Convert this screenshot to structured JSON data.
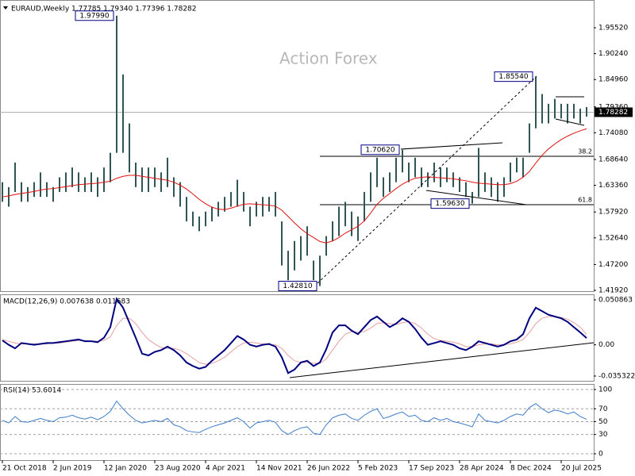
{
  "chart_data": [
    {
      "type": "ohlc",
      "title": "EURAUD,Weekly  1.77785 1.79340 1.77396 1.78282",
      "watermark": "Action Forex",
      "bar_color": "#2f5555",
      "highs": [
        1.64,
        1.63,
        1.68,
        1.64,
        1.63,
        1.64,
        1.66,
        1.64,
        1.63,
        1.65,
        1.66,
        1.67,
        1.66,
        1.65,
        1.66,
        1.65,
        1.67,
        1.7,
        1.9799,
        1.86,
        1.76,
        1.68,
        1.67,
        1.67,
        1.67,
        1.66,
        1.69,
        1.65,
        1.64,
        1.61,
        1.58,
        1.57,
        1.58,
        1.59,
        1.6,
        1.61,
        1.62,
        1.645,
        1.62,
        1.59,
        1.6,
        1.61,
        1.61,
        1.62,
        1.56,
        1.5,
        1.52,
        1.53,
        1.55,
        1.48,
        1.49,
        1.53,
        1.56,
        1.59,
        1.6,
        1.58,
        1.57,
        1.62,
        1.66,
        1.69,
        1.65,
        1.66,
        1.69,
        1.7062,
        1.68,
        1.69,
        1.67,
        1.66,
        1.68,
        1.67,
        1.67,
        1.66,
        1.65,
        1.64,
        1.62,
        1.71,
        1.66,
        1.65,
        1.64,
        1.65,
        1.68,
        1.69,
        1.69,
        1.76,
        1.8554,
        1.82,
        1.8,
        1.81,
        1.8,
        1.8,
        1.8,
        1.79,
        1.7934
      ],
      "lows": [
        1.6,
        1.59,
        1.62,
        1.6,
        1.6,
        1.61,
        1.61,
        1.61,
        1.6,
        1.62,
        1.62,
        1.63,
        1.62,
        1.62,
        1.62,
        1.61,
        1.62,
        1.64,
        1.7,
        1.7,
        1.66,
        1.63,
        1.62,
        1.62,
        1.63,
        1.62,
        1.63,
        1.61,
        1.59,
        1.56,
        1.55,
        1.54,
        1.55,
        1.56,
        1.57,
        1.58,
        1.59,
        1.59,
        1.58,
        1.55,
        1.57,
        1.57,
        1.58,
        1.57,
        1.47,
        1.44,
        1.46,
        1.48,
        1.49,
        1.44,
        1.4281,
        1.49,
        1.52,
        1.53,
        1.55,
        1.53,
        1.52,
        1.56,
        1.6,
        1.63,
        1.61,
        1.62,
        1.64,
        1.66,
        1.64,
        1.65,
        1.63,
        1.63,
        1.64,
        1.63,
        1.64,
        1.63,
        1.62,
        1.61,
        1.5963,
        1.61,
        1.62,
        1.61,
        1.6,
        1.61,
        1.64,
        1.66,
        1.65,
        1.7,
        1.75,
        1.76,
        1.76,
        1.77,
        1.77,
        1.76,
        1.77,
        1.76,
        1.77396
      ],
      "ma_color": "#e01010",
      "ma_values": [
        1.61,
        1.612,
        1.615,
        1.617,
        1.619,
        1.621,
        1.624,
        1.626,
        1.627,
        1.629,
        1.631,
        1.633,
        1.635,
        1.636,
        1.637,
        1.638,
        1.64,
        1.642,
        1.648,
        1.652,
        1.654,
        1.654,
        1.652,
        1.65,
        1.648,
        1.646,
        1.644,
        1.64,
        1.634,
        1.626,
        1.616,
        1.605,
        1.596,
        1.589,
        1.585,
        1.584,
        1.587,
        1.591,
        1.595,
        1.596,
        1.595,
        1.594,
        1.593,
        1.591,
        1.583,
        1.57,
        1.557,
        1.545,
        1.535,
        1.527,
        1.519,
        1.516,
        1.52,
        1.527,
        1.536,
        1.543,
        1.55,
        1.561,
        1.577,
        1.595,
        1.607,
        1.617,
        1.627,
        1.636,
        1.643,
        1.648,
        1.65,
        1.651,
        1.65,
        1.649,
        1.648,
        1.647,
        1.645,
        1.643,
        1.64,
        1.638,
        1.637,
        1.636,
        1.635,
        1.635,
        1.637,
        1.642,
        1.65,
        1.662,
        1.679,
        1.695,
        1.708,
        1.718,
        1.727,
        1.734,
        1.74,
        1.745,
        1.749
      ],
      "annotations": [
        {
          "value": 1.9799,
          "label": "1.97990"
        },
        {
          "value": 1.8554,
          "label": "1.85540"
        },
        {
          "value": 1.7062,
          "label": "1.70620"
        },
        {
          "value": 1.5963,
          "label": "1.59630"
        },
        {
          "value": 1.4281,
          "label": "1.42810"
        }
      ],
      "fib_levels": [
        {
          "value": 1.6929,
          "label": "38.2"
        },
        {
          "value": 1.5941,
          "label": "61.8"
        }
      ],
      "last_price": {
        "value": 1.78282,
        "label": "1.78282"
      },
      "ylim": [
        1.4176,
        2.0119
      ],
      "yticks": [
        {
          "value": 1.9552,
          "label": "1.95520"
        },
        {
          "value": 1.9024,
          "label": "1.90240"
        },
        {
          "value": 1.8496,
          "label": "1.84960"
        },
        {
          "value": 1.7936,
          "label": "1.79360"
        },
        {
          "value": 1.7408,
          "label": "1.74080"
        },
        {
          "value": 1.6864,
          "label": "1.68640"
        },
        {
          "value": 1.6336,
          "label": "1.63360"
        },
        {
          "value": 1.5792,
          "label": "1.57920"
        },
        {
          "value": 1.5264,
          "label": "1.52640"
        },
        {
          "value": 1.472,
          "label": "1.47200"
        },
        {
          "value": 1.4192,
          "label": "1.41920"
        }
      ]
    },
    {
      "type": "line",
      "title": "MACD(12,26,9) 0.007638 0.011683",
      "macd_color": "#000080",
      "macd_values": [
        0.005,
        0.0,
        -0.004,
        0.002,
        0.001,
        0.0,
        0.001,
        0.002,
        0.002,
        0.003,
        0.004,
        0.005,
        0.006,
        0.004,
        0.004,
        0.003,
        0.008,
        0.02,
        0.052,
        0.042,
        0.025,
        0.008,
        -0.01,
        -0.012,
        -0.008,
        -0.006,
        -0.002,
        -0.006,
        -0.012,
        -0.02,
        -0.024,
        -0.027,
        -0.025,
        -0.018,
        -0.012,
        -0.006,
        0.002,
        0.01,
        0.006,
        0.0,
        -0.002,
        0.0,
        0.001,
        -0.002,
        -0.014,
        -0.032,
        -0.028,
        -0.02,
        -0.018,
        -0.024,
        -0.02,
        -0.005,
        0.014,
        0.022,
        0.022,
        0.016,
        0.012,
        0.02,
        0.028,
        0.032,
        0.026,
        0.02,
        0.024,
        0.03,
        0.026,
        0.018,
        0.008,
        0.0,
        0.002,
        0.004,
        0.002,
        0.0,
        -0.004,
        -0.006,
        -0.002,
        0.004,
        0.002,
        0.0,
        -0.002,
        0.0,
        0.004,
        0.006,
        0.012,
        0.03,
        0.042,
        0.038,
        0.034,
        0.032,
        0.03,
        0.026,
        0.02,
        0.014,
        0.0076
      ],
      "signal_color": "#e8a0a0",
      "signal_values": [
        0.006,
        0.004,
        0.002,
        0.001,
        0.001,
        0.001,
        0.001,
        0.001,
        0.002,
        0.002,
        0.003,
        0.004,
        0.005,
        0.005,
        0.004,
        0.004,
        0.005,
        0.009,
        0.022,
        0.03,
        0.03,
        0.024,
        0.014,
        0.006,
        0.001,
        -0.003,
        -0.004,
        -0.004,
        -0.006,
        -0.01,
        -0.015,
        -0.02,
        -0.022,
        -0.021,
        -0.018,
        -0.014,
        -0.008,
        -0.002,
        0.002,
        0.003,
        0.002,
        0.001,
        0.0,
        0.0,
        -0.004,
        -0.012,
        -0.018,
        -0.02,
        -0.02,
        -0.021,
        -0.021,
        -0.016,
        -0.006,
        0.004,
        0.012,
        0.015,
        0.014,
        0.015,
        0.019,
        0.024,
        0.025,
        0.024,
        0.023,
        0.025,
        0.026,
        0.024,
        0.019,
        0.012,
        0.007,
        0.005,
        0.004,
        0.003,
        0.001,
        -0.002,
        -0.002,
        0.0,
        0.001,
        0.001,
        0.0,
        0.0,
        0.001,
        0.003,
        0.006,
        0.014,
        0.024,
        0.03,
        0.032,
        0.032,
        0.031,
        0.029,
        0.025,
        0.02,
        0.0117
      ],
      "ylim": [
        -0.0407,
        0.0571
      ],
      "yticks": [
        0.050863,
        {
          "value": 0,
          "label": "0.00"
        },
        -0.035322
      ]
    },
    {
      "type": "line",
      "title": "RSI(14) 53.6014",
      "color": "#3d7cc9",
      "values": [
        52,
        48,
        58,
        50,
        49,
        52,
        55,
        52,
        50,
        56,
        57,
        60,
        56,
        54,
        57,
        53,
        58,
        66,
        82,
        70,
        60,
        52,
        48,
        50,
        52,
        50,
        55,
        45,
        42,
        36,
        34,
        33,
        38,
        42,
        45,
        48,
        52,
        56,
        50,
        40,
        48,
        50,
        52,
        49,
        36,
        30,
        36,
        40,
        42,
        32,
        30,
        45,
        56,
        60,
        62,
        55,
        52,
        60,
        66,
        70,
        55,
        58,
        62,
        65,
        58,
        60,
        52,
        50,
        56,
        52,
        55,
        50,
        48,
        45,
        42,
        62,
        52,
        50,
        48,
        52,
        58,
        62,
        60,
        72,
        78,
        70,
        64,
        68,
        66,
        62,
        65,
        58,
        53.6014
      ],
      "categories": [
        "21 Oct 2018",
        null,
        null,
        null,
        null,
        null,
        null,
        null,
        "2 Jun 2019",
        null,
        null,
        null,
        null,
        null,
        null,
        null,
        "12 Jan 2020",
        null,
        null,
        null,
        null,
        null,
        null,
        null,
        "23 Aug 2020",
        null,
        null,
        null,
        null,
        null,
        null,
        null,
        "4 Apr 2021",
        null,
        null,
        null,
        null,
        null,
        null,
        null,
        "14 Nov 2021",
        null,
        null,
        null,
        null,
        null,
        null,
        null,
        "26 Jun 2022",
        null,
        null,
        null,
        null,
        null,
        null,
        null,
        "5 Feb 2023",
        null,
        null,
        null,
        null,
        null,
        null,
        null,
        "17 Sep 2023",
        null,
        null,
        null,
        null,
        null,
        null,
        null,
        "28 Apr 2024",
        null,
        null,
        null,
        null,
        null,
        null,
        null,
        "8 Dec 2024",
        null,
        null,
        null,
        null,
        null,
        null,
        null,
        "20 Jul 2025",
        null,
        null,
        null,
        null
      ],
      "ylim": [
        -9.9,
        108.6
      ],
      "yticks": [
        100,
        70,
        50,
        30,
        0
      ]
    }
  ]
}
